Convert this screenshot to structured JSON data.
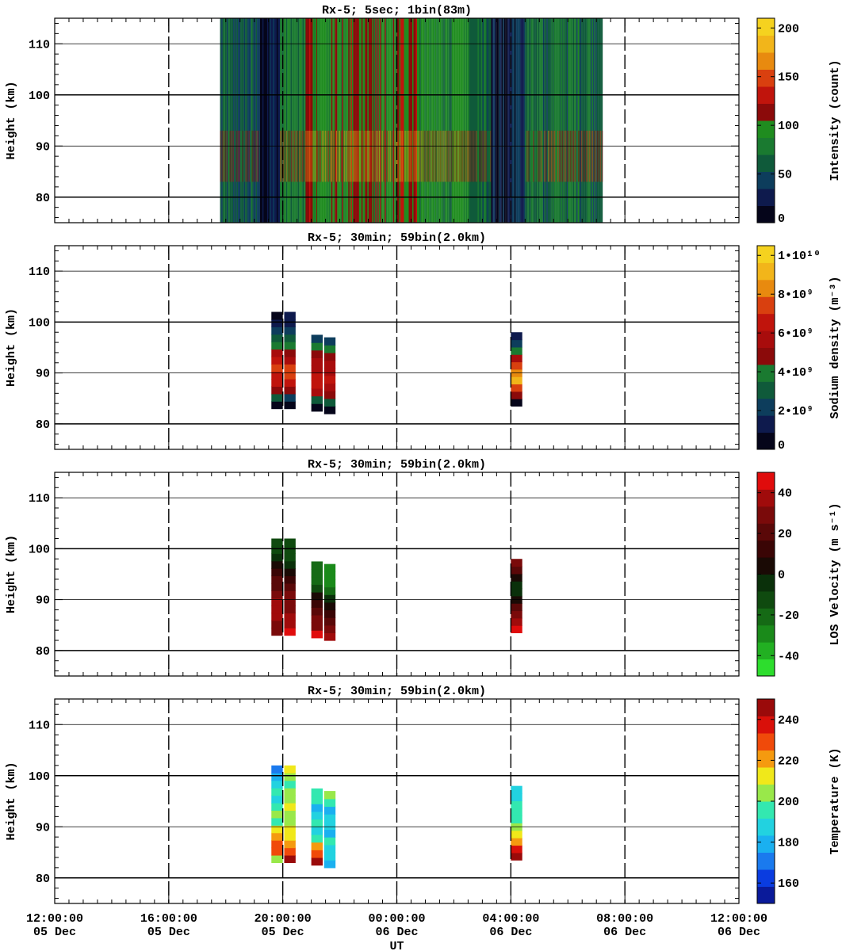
{
  "chart_data": [
    {
      "type": "heatmap",
      "title": "Rx-5;  5sec; 1bin(83m)",
      "ylabel": "Height (km)",
      "ylim": [
        75,
        115
      ],
      "yticks": [
        80,
        90,
        100,
        110
      ],
      "xlim_hours": [
        0,
        24
      ],
      "colorbar": {
        "label": "Intensity (count)",
        "range": [
          0,
          210
        ],
        "ticks": [
          "0",
          "50",
          "100",
          "150",
          "200"
        ],
        "tick_values": [
          0,
          50,
          100,
          150,
          200
        ],
        "colors": [
          "#05051a",
          "#0e1a4d",
          "#0d3d5c",
          "#0f5a3a",
          "#1a7a30",
          "#1f8c1f",
          "#8b0a0a",
          "#c0140c",
          "#d9400f",
          "#e88a0f",
          "#f2b51a",
          "#f5d21f"
        ]
      },
      "data_extent_hours": [
        5.8,
        19.2
      ],
      "bands": [
        {
          "x0": 5.8,
          "x1": 7.2,
          "base": 55
        },
        {
          "x0": 7.2,
          "x1": 7.9,
          "base": 25
        },
        {
          "x0": 7.9,
          "x1": 8.8,
          "base": 75
        },
        {
          "x0": 8.8,
          "x1": 9.2,
          "base": 105
        },
        {
          "x0": 9.2,
          "x1": 10.3,
          "base": 95
        },
        {
          "x0": 10.3,
          "x1": 11.2,
          "base": 110
        },
        {
          "x0": 11.2,
          "x1": 12.0,
          "base": 90
        },
        {
          "x0": 12.0,
          "x1": 12.8,
          "base": 112
        },
        {
          "x0": 12.8,
          "x1": 14.5,
          "base": 85
        },
        {
          "x0": 14.5,
          "x1": 15.3,
          "base": 70
        },
        {
          "x0": 15.3,
          "x1": 16.0,
          "base": 20
        },
        {
          "x0": 16.0,
          "x1": 16.5,
          "base": 35
        },
        {
          "x0": 16.5,
          "x1": 17.3,
          "base": 60
        },
        {
          "x0": 17.3,
          "x1": 19.2,
          "base": 70
        }
      ],
      "layer_km": [
        83,
        93
      ]
    },
    {
      "type": "heatmap",
      "title": "Rx-5; 30min; 59bin(2.0km)",
      "ylabel": "Height (km)",
      "ylim": [
        75,
        115
      ],
      "yticks": [
        80,
        90,
        100,
        110
      ],
      "xlim_hours": [
        0,
        24
      ],
      "colorbar": {
        "label": "Sodium density (m⁻³)",
        "range": [
          0,
          10500000000.0
        ],
        "ticks": [
          "0",
          "2•10⁹",
          "4•10⁹",
          "6•10⁹",
          "8•10⁹",
          "1•10¹⁰"
        ],
        "tick_values": [
          0,
          2000000000.0,
          4000000000.0,
          6000000000.0,
          8000000000.0,
          10000000000.0
        ],
        "colors": [
          "#05051a",
          "#0e1a4d",
          "#0d3d5c",
          "#0f5a3a",
          "#1a7a30",
          "#8b0a0a",
          "#a80c0c",
          "#c0140c",
          "#d9400f",
          "#e88a0f",
          "#f2b51a",
          "#f5d21f"
        ]
      },
      "columns": [
        {
          "x0": 7.6,
          "x1": 8.0,
          "bottom": 83,
          "top": 102,
          "values": [
            500000000.0,
            3000000000.0,
            5000000000.0,
            6500000000.0,
            6500000000.0,
            7000000000.0,
            6500000000.0,
            5500000000.0,
            4000000000.0,
            3000000000.0,
            2000000000.0,
            1000000000.0,
            800000000.0
          ]
        },
        {
          "x0": 8.05,
          "x1": 8.45,
          "bottom": 83,
          "top": 102,
          "values": [
            500000000.0,
            2500000000.0,
            5000000000.0,
            6500000000.0,
            7000000000.0,
            7000000000.0,
            6000000000.0,
            5000000000.0,
            3500000000.0,
            3000000000.0,
            2000000000.0,
            1500000000.0,
            1000000000.0
          ]
        },
        {
          "x0": 9.0,
          "x1": 9.4,
          "bottom": 82.5,
          "top": 97.5,
          "values": [
            800000000.0,
            3000000000.0,
            5500000000.0,
            6500000000.0,
            6500000000.0,
            6000000000.0,
            5500000000.0,
            4500000000.0,
            3500000000.0,
            2000000000.0
          ]
        },
        {
          "x0": 9.45,
          "x1": 9.85,
          "bottom": 82,
          "top": 97,
          "values": [
            800000000.0,
            3000000000.0,
            5000000000.0,
            6000000000.0,
            6500000000.0,
            6000000000.0,
            5500000000.0,
            4500000000.0,
            3500000000.0,
            2500000000.0
          ]
        },
        {
          "x0": 16.0,
          "x1": 16.4,
          "bottom": 83.5,
          "top": 98,
          "values": [
            500000000.0,
            5000000000.0,
            7500000000.0,
            9000000000.0,
            8500000000.0,
            7000000000.0,
            6000000000.0,
            4000000000.0,
            2500000000.0,
            1000000000.0
          ]
        }
      ]
    },
    {
      "type": "heatmap",
      "title": "Rx-5; 30min; 59bin(2.0km)",
      "ylabel": "Height (km)",
      "ylim": [
        75,
        115
      ],
      "yticks": [
        80,
        90,
        100,
        110
      ],
      "xlim_hours": [
        0,
        24
      ],
      "colorbar": {
        "label": "LOS Velocity (m s⁻¹)",
        "range": [
          -50,
          50
        ],
        "ticks": [
          "-40",
          "-20",
          "0",
          "20",
          "40"
        ],
        "tick_values": [
          -40,
          -20,
          0,
          20,
          40
        ],
        "colors": [
          "#2ddd2d",
          "#22b022",
          "#1a8a1a",
          "#156a15",
          "#0f4a0f",
          "#0a300a",
          "#1a0a05",
          "#3a0505",
          "#5a0808",
          "#7a0a0a",
          "#a00b0b",
          "#e00c0c"
        ]
      },
      "columns": [
        {
          "x0": 7.6,
          "x1": 8.0,
          "bottom": 83,
          "top": 102,
          "values": [
            30,
            32,
            34,
            36,
            35,
            30,
            24,
            18,
            10,
            2,
            -8,
            -14,
            -16
          ]
        },
        {
          "x0": 8.05,
          "x1": 8.45,
          "bottom": 83,
          "top": 102,
          "values": [
            48,
            36,
            34,
            32,
            30,
            26,
            20,
            14,
            5,
            -4,
            -10,
            -14,
            -16
          ]
        },
        {
          "x0": 9.0,
          "x1": 9.4,
          "bottom": 82.5,
          "top": 97.5,
          "values": [
            46,
            30,
            26,
            22,
            14,
            4,
            -10,
            -18,
            -22,
            -20
          ]
        },
        {
          "x0": 9.45,
          "x1": 9.85,
          "bottom": 82,
          "top": 97,
          "values": [
            40,
            26,
            20,
            16,
            8,
            -4,
            -18,
            -26,
            -28,
            -26
          ]
        },
        {
          "x0": 16.0,
          "x1": 16.4,
          "bottom": 83.5,
          "top": 98,
          "values": [
            46,
            38,
            30,
            20,
            8,
            -2,
            -4,
            6,
            20,
            30
          ]
        }
      ]
    },
    {
      "type": "heatmap",
      "title": "Rx-5; 30min; 59bin(2.0km)",
      "ylabel": "Height (km)",
      "xlabel": "UT",
      "ylim": [
        75,
        115
      ],
      "yticks": [
        80,
        90,
        100,
        110
      ],
      "xlim_hours": [
        0,
        24
      ],
      "xtick_labels": [
        [
          "12:00:00",
          "05 Dec"
        ],
        [
          "16:00:00",
          "05 Dec"
        ],
        [
          "20:00:00",
          "05 Dec"
        ],
        [
          "00:00:00",
          "06 Dec"
        ],
        [
          "04:00:00",
          "06 Dec"
        ],
        [
          "08:00:00",
          "06 Dec"
        ],
        [
          "12:00:00",
          "06 Dec"
        ]
      ],
      "colorbar": {
        "label": "Temperature (K)",
        "range": [
          150,
          250
        ],
        "ticks": [
          "160",
          "180",
          "200",
          "220",
          "240"
        ],
        "tick_values": [
          160,
          180,
          200,
          220,
          240
        ],
        "colors": [
          "#0a1a9a",
          "#0a3ce0",
          "#1a7aee",
          "#1ab0f0",
          "#22d2e0",
          "#33e8b0",
          "#99e84a",
          "#f0e81a",
          "#f59a0f",
          "#f04a0a",
          "#d9100a",
          "#9a0a0a"
        ]
      },
      "columns": [
        {
          "x0": 7.6,
          "x1": 8.0,
          "bottom": 83,
          "top": 102,
          "values": [
            205,
            225,
            232,
            218,
            212,
            198,
            200,
            194,
            190,
            196,
            188,
            180,
            170
          ]
        },
        {
          "x0": 8.05,
          "x1": 8.45,
          "bottom": 83,
          "top": 102,
          "values": [
            245,
            228,
            220,
            212,
            210,
            208,
            208,
            210,
            208,
            204,
            196,
            200,
            210
          ]
        },
        {
          "x0": 9.0,
          "x1": 9.4,
          "bottom": 82.5,
          "top": 97.5,
          "values": [
            245,
            232,
            222,
            196,
            188,
            192,
            186,
            182,
            192,
            198
          ]
        },
        {
          "x0": 9.45,
          "x1": 9.85,
          "bottom": 82,
          "top": 97,
          "values": [
            182,
            186,
            190,
            194,
            182,
            188,
            186,
            180,
            196,
            200
          ]
        },
        {
          "x0": 16.0,
          "x1": 16.4,
          "bottom": 83.5,
          "top": 98,
          "values": [
            245,
            235,
            222,
            212,
            200,
            198,
            194,
            196,
            190,
            186
          ]
        }
      ]
    }
  ]
}
